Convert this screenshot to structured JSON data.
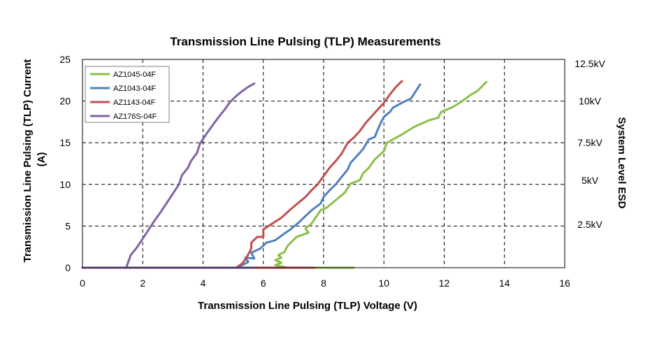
{
  "chart_data": {
    "type": "line",
    "title": "Transmission Line Pulsing (TLP) Measurements",
    "xlabel": "Transmission Line Pulsing (TLP) Voltage (V)",
    "ylabel": "Transmission Line Pulsing (TLP) Current (A)",
    "y2label": "System Level ESD",
    "xlim": [
      0,
      16
    ],
    "ylim": [
      0,
      25
    ],
    "x_ticks": [
      "0",
      "2",
      "4",
      "6",
      "8",
      "10",
      "12",
      "14",
      "16"
    ],
    "y_ticks": [
      "0",
      "5",
      "10",
      "15",
      "20",
      "25"
    ],
    "y2_labels": [
      {
        "text": "12.5kV",
        "y": 24.5
      },
      {
        "text": "10kV",
        "y": 20
      },
      {
        "text": "7.5kV",
        "y": 15
      },
      {
        "text": "5kV",
        "y": 10.5
      },
      {
        "text": "2.5kV",
        "y": 5.2
      }
    ],
    "grid": true,
    "legend_position": "top-left",
    "series": [
      {
        "name": "AZ1045-04F",
        "color": "#8cbf4a",
        "points": [
          [
            0,
            0
          ],
          [
            9.0,
            0
          ],
          [
            6.8,
            0
          ],
          [
            6.4,
            0.3
          ],
          [
            6.6,
            0.6
          ],
          [
            6.4,
            0.9
          ],
          [
            6.6,
            1.2
          ],
          [
            6.5,
            1.5
          ],
          [
            6.7,
            1.9
          ],
          [
            6.8,
            2.6
          ],
          [
            7.1,
            3.7
          ],
          [
            7.5,
            4.2
          ],
          [
            7.4,
            4.7
          ],
          [
            7.6,
            5.3
          ],
          [
            7.9,
            6.9
          ],
          [
            8.1,
            7.2
          ],
          [
            8.4,
            8.1
          ],
          [
            8.7,
            9.0
          ],
          [
            8.9,
            10.1
          ],
          [
            9.2,
            10.5
          ],
          [
            9.3,
            11.3
          ],
          [
            9.5,
            12.0
          ],
          [
            9.7,
            13.0
          ],
          [
            10.0,
            14.0
          ],
          [
            10.1,
            15.0
          ],
          [
            10.6,
            16.0
          ],
          [
            11.0,
            16.9
          ],
          [
            11.5,
            17.7
          ],
          [
            11.8,
            18.0
          ],
          [
            11.9,
            18.7
          ],
          [
            12.3,
            19.3
          ],
          [
            12.6,
            20.0
          ],
          [
            12.9,
            20.8
          ],
          [
            13.1,
            21.2
          ],
          [
            13.4,
            22.3
          ]
        ]
      },
      {
        "name": "AZ1043-04F",
        "color": "#4f81bd",
        "points": [
          [
            0,
            0
          ],
          [
            7.0,
            0
          ],
          [
            5.1,
            0
          ],
          [
            5.3,
            0.3
          ],
          [
            5.5,
            0.7
          ],
          [
            5.4,
            1.2
          ],
          [
            5.7,
            1.1
          ],
          [
            5.6,
            1.8
          ],
          [
            5.9,
            2.3
          ],
          [
            6.1,
            3.0
          ],
          [
            6.4,
            3.3
          ],
          [
            6.7,
            4.1
          ],
          [
            6.9,
            4.6
          ],
          [
            7.2,
            5.5
          ],
          [
            7.4,
            6.2
          ],
          [
            7.6,
            6.9
          ],
          [
            7.9,
            7.7
          ],
          [
            8.0,
            8.5
          ],
          [
            8.2,
            9.3
          ],
          [
            8.4,
            10.0
          ],
          [
            8.6,
            10.9
          ],
          [
            8.8,
            11.8
          ],
          [
            8.9,
            12.6
          ],
          [
            9.1,
            13.4
          ],
          [
            9.3,
            14.2
          ],
          [
            9.5,
            15.4
          ],
          [
            9.7,
            15.7
          ],
          [
            9.8,
            16.6
          ],
          [
            9.9,
            17.4
          ],
          [
            10.0,
            18.1
          ],
          [
            10.2,
            18.7
          ],
          [
            10.3,
            19.2
          ],
          [
            10.6,
            19.8
          ],
          [
            10.9,
            20.3
          ],
          [
            11.2,
            22.0
          ]
        ]
      },
      {
        "name": "AZ1143-04F",
        "color": "#c0504d",
        "points": [
          [
            0,
            0
          ],
          [
            7.7,
            0
          ],
          [
            5.1,
            0
          ],
          [
            5.3,
            0.5
          ],
          [
            5.4,
            1.0
          ],
          [
            5.5,
            1.6
          ],
          [
            5.6,
            2.3
          ],
          [
            5.6,
            3.0
          ],
          [
            5.8,
            3.7
          ],
          [
            6.0,
            3.7
          ],
          [
            6.0,
            4.6
          ],
          [
            6.3,
            5.3
          ],
          [
            6.6,
            6.0
          ],
          [
            6.9,
            7.0
          ],
          [
            7.2,
            7.9
          ],
          [
            7.4,
            8.5
          ],
          [
            7.6,
            9.3
          ],
          [
            7.8,
            10.0
          ],
          [
            8.0,
            11.0
          ],
          [
            8.2,
            12.0
          ],
          [
            8.4,
            12.8
          ],
          [
            8.6,
            13.7
          ],
          [
            8.8,
            15.0
          ],
          [
            9.0,
            15.6
          ],
          [
            9.2,
            16.4
          ],
          [
            9.4,
            17.4
          ],
          [
            9.6,
            18.2
          ],
          [
            9.8,
            19.0
          ],
          [
            10.0,
            19.8
          ],
          [
            10.2,
            20.8
          ],
          [
            10.4,
            21.7
          ],
          [
            10.6,
            22.4
          ]
        ]
      },
      {
        "name": "AZ176S-04F",
        "color": "#8064a2",
        "points": [
          [
            0,
            0
          ],
          [
            5.7,
            0
          ],
          [
            1.45,
            0
          ],
          [
            1.5,
            0.5
          ],
          [
            1.6,
            1.5
          ],
          [
            1.8,
            2.4
          ],
          [
            2.0,
            3.5
          ],
          [
            2.2,
            4.6
          ],
          [
            2.4,
            5.7
          ],
          [
            2.6,
            6.7
          ],
          [
            2.8,
            7.8
          ],
          [
            3.0,
            8.9
          ],
          [
            3.2,
            10.0
          ],
          [
            3.3,
            11.1
          ],
          [
            3.5,
            12.0
          ],
          [
            3.6,
            12.8
          ],
          [
            3.8,
            13.8
          ],
          [
            3.9,
            14.9
          ],
          [
            4.1,
            16.0
          ],
          [
            4.3,
            17.0
          ],
          [
            4.5,
            18.0
          ],
          [
            4.7,
            18.9
          ],
          [
            4.9,
            19.9
          ],
          [
            5.1,
            20.6
          ],
          [
            5.3,
            21.2
          ],
          [
            5.5,
            21.7
          ],
          [
            5.7,
            22.1
          ]
        ]
      }
    ]
  }
}
